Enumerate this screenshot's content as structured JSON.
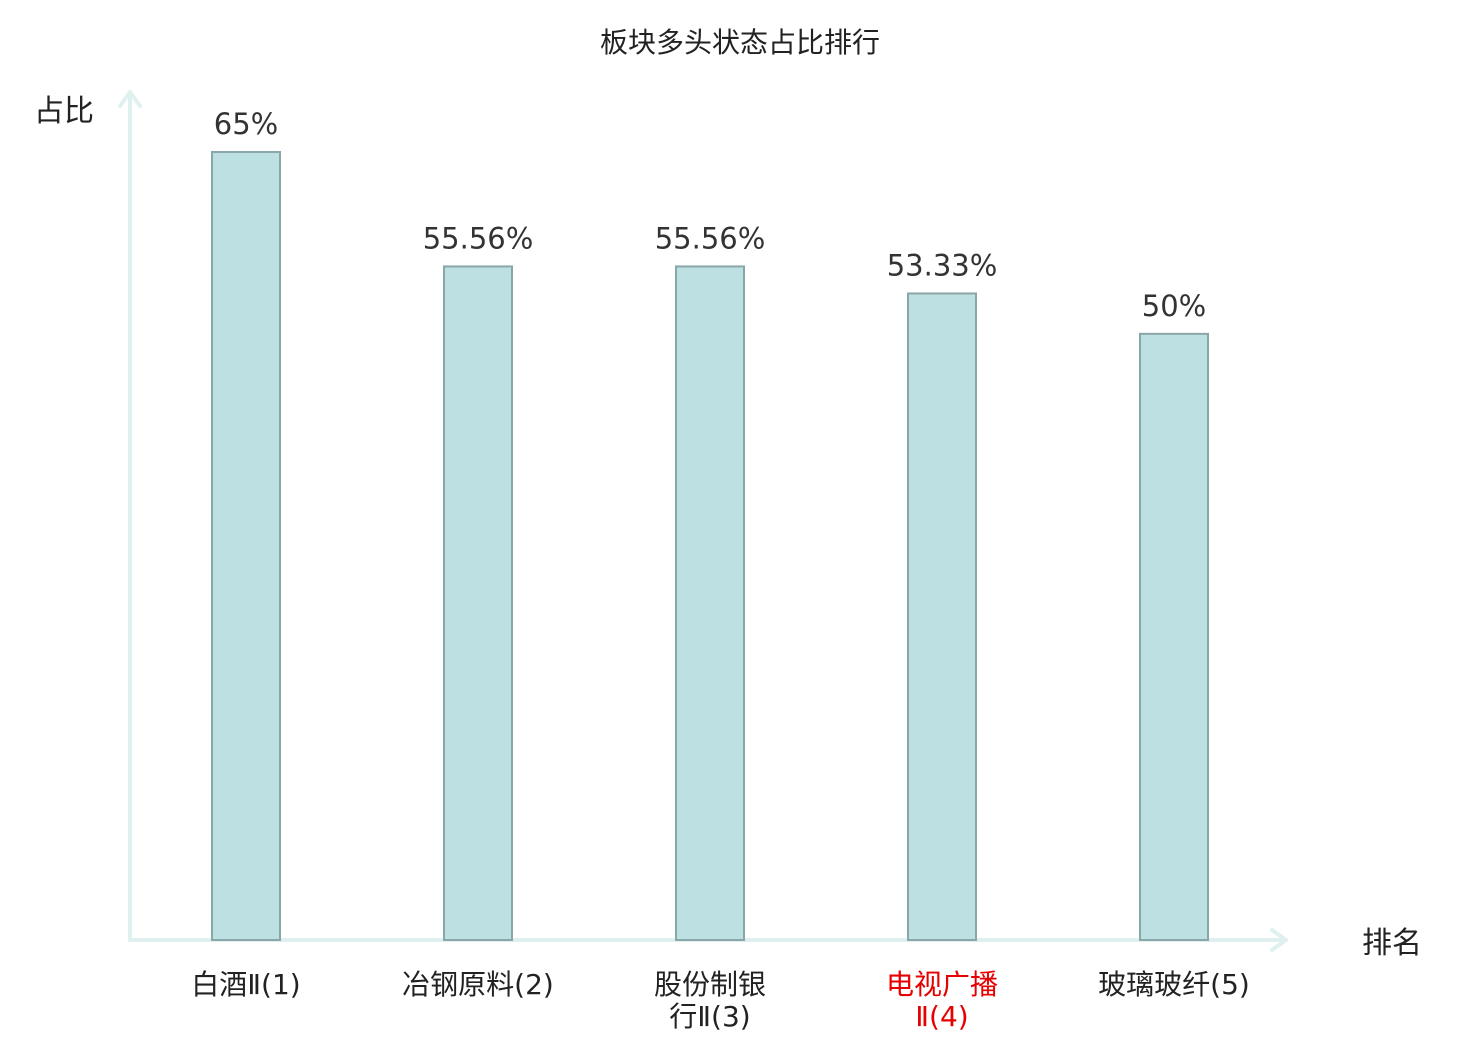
{
  "chart_data": {
    "type": "bar",
    "title": "板块多头状态占比排行",
    "ylabel": "占比",
    "xlabel": "排名",
    "ylim": [
      0,
      65
    ],
    "grid": false,
    "legend": "none",
    "categories": [
      [
        "白酒Ⅱ(1)"
      ],
      [
        "冶钢原料(2)"
      ],
      [
        "股份制银",
        "行Ⅱ(3)"
      ],
      [
        "电视广播",
        "Ⅱ(4)"
      ],
      [
        "玻璃玻纤(5)"
      ]
    ],
    "values": [
      65,
      55.56,
      55.56,
      53.33,
      50
    ],
    "value_labels": [
      "65%",
      "55.56%",
      "55.56%",
      "53.33%",
      "50%"
    ],
    "highlight_index": 3,
    "colors": {
      "bar_fill": "#bde0e2",
      "bar_stroke": "#8aa6a8",
      "axis": "#dff1ef",
      "text": "#222222",
      "highlight": "#e60000"
    }
  }
}
